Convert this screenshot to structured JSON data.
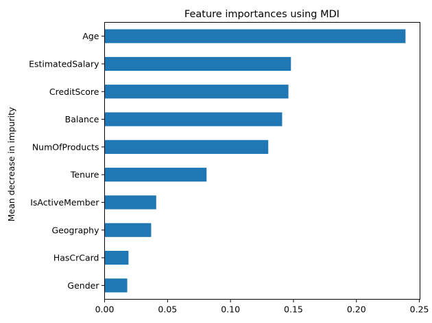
{
  "chart_data": {
    "type": "bar",
    "orientation": "horizontal",
    "title": "Feature importances using MDI",
    "xlabel": "",
    "ylabel": "Mean decrease in impurity",
    "categories": [
      "Gender",
      "HasCrCard",
      "Geography",
      "IsActiveMember",
      "Tenure",
      "NumOfProducts",
      "Balance",
      "CreditScore",
      "EstimatedSalary",
      "Age"
    ],
    "values": [
      0.018,
      0.019,
      0.037,
      0.041,
      0.081,
      0.13,
      0.141,
      0.146,
      0.148,
      0.239
    ],
    "xlim": [
      0.0,
      0.2505
    ],
    "xticks": [
      0.0,
      0.05,
      0.1,
      0.15,
      0.2,
      0.25
    ],
    "xtick_labels": [
      "0.00",
      "0.05",
      "0.10",
      "0.15",
      "0.20",
      "0.25"
    ],
    "bar_color": "#1f77b4",
    "grid": false,
    "legend": "none"
  }
}
